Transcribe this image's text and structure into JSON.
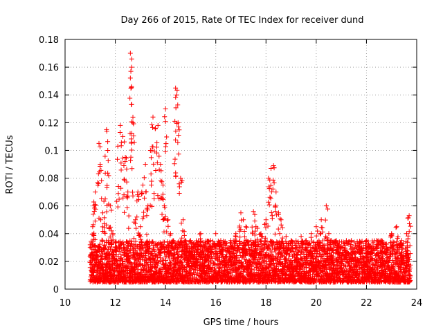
{
  "chart_data": {
    "type": "scatter",
    "title": "Day 266 of 2015, Rate Of TEC Index for receiver dund",
    "xlabel": "GPS time / hours",
    "ylabel": "ROTI / TECUs",
    "xlim": [
      10,
      24
    ],
    "ylim": [
      0,
      0.18
    ],
    "xticks": [
      "10",
      "12",
      "14",
      "16",
      "18",
      "20",
      "22",
      "24"
    ],
    "yticks": [
      "0",
      "0.02",
      "0.04",
      "0.06",
      "0.08",
      "0.1",
      "0.12",
      "0.14",
      "0.16",
      "0.18"
    ],
    "grid": true,
    "marker": "+",
    "color": "#ff0000",
    "series": [
      {
        "name": "ROTI",
        "x": [
          11.05,
          11.1,
          11.15,
          11.2,
          11.3,
          11.35,
          11.4,
          11.5,
          11.6,
          11.65,
          11.7,
          11.8,
          11.9,
          12.0,
          12.1,
          12.2,
          12.3,
          12.4,
          12.5,
          12.6,
          12.62,
          12.65,
          12.7,
          12.8,
          12.9,
          13.0,
          13.1,
          13.2,
          13.3,
          13.4,
          13.5,
          13.6,
          13.7,
          13.8,
          13.9,
          13.95,
          14.0,
          14.1,
          14.2,
          14.3,
          14.4,
          14.45,
          14.5,
          14.6,
          14.7,
          14.8,
          15.0,
          15.2,
          15.4,
          15.6,
          15.8,
          16.0,
          16.2,
          16.4,
          16.6,
          16.8,
          17.0,
          17.1,
          17.2,
          17.4,
          17.5,
          17.6,
          17.8,
          18.0,
          18.1,
          18.2,
          18.3,
          18.4,
          18.5,
          18.6,
          18.8,
          19.0,
          19.2,
          19.4,
          19.6,
          19.8,
          20.0,
          20.2,
          20.4,
          20.5,
          20.6,
          20.8,
          21.0,
          21.2,
          21.4,
          21.6,
          21.8,
          22.0,
          22.2,
          22.4,
          22.6,
          22.8,
          23.0,
          23.2,
          23.4,
          23.6,
          23.7
        ],
        "y": [
          0.025,
          0.045,
          0.06,
          0.07,
          0.03,
          0.105,
          0.09,
          0.055,
          0.065,
          0.115,
          0.1,
          0.06,
          0.04,
          0.03,
          0.103,
          0.118,
          0.11,
          0.095,
          0.07,
          0.17,
          0.157,
          0.16,
          0.12,
          0.05,
          0.07,
          0.045,
          0.075,
          0.09,
          0.06,
          0.1,
          0.124,
          0.116,
          0.118,
          0.09,
          0.075,
          0.06,
          0.13,
          0.05,
          0.04,
          0.035,
          0.145,
          0.14,
          0.12,
          0.08,
          0.05,
          0.035,
          0.035,
          0.03,
          0.04,
          0.03,
          0.035,
          0.04,
          0.035,
          0.03,
          0.035,
          0.04,
          0.055,
          0.05,
          0.045,
          0.035,
          0.056,
          0.045,
          0.04,
          0.05,
          0.08,
          0.087,
          0.089,
          0.07,
          0.055,
          0.05,
          0.038,
          0.035,
          0.03,
          0.038,
          0.035,
          0.04,
          0.045,
          0.05,
          0.06,
          0.04,
          0.035,
          0.035,
          0.03,
          0.035,
          0.035,
          0.03,
          0.03,
          0.035,
          0.03,
          0.035,
          0.035,
          0.03,
          0.04,
          0.045,
          0.035,
          0.04,
          0.053
        ],
        "baseline_band": [
          0.005,
          0.035
        ]
      }
    ]
  }
}
